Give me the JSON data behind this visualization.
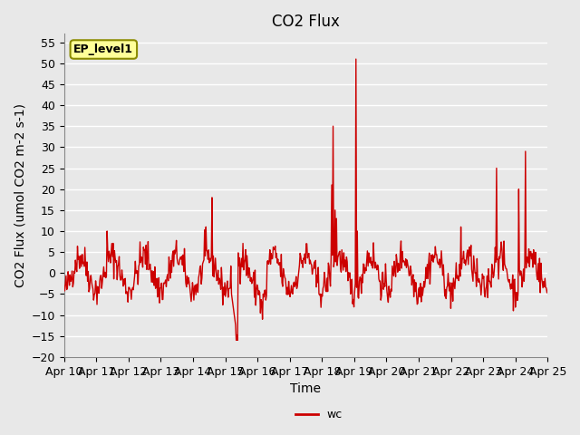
{
  "title": "CO2 Flux",
  "xlabel": "Time",
  "ylabel": "CO2 Flux (umol CO2 m-2 s-1)",
  "ylim": [
    -20,
    57
  ],
  "yticks": [
    -20,
    -15,
    -10,
    -5,
    0,
    5,
    10,
    15,
    20,
    25,
    30,
    35,
    40,
    45,
    50,
    55
  ],
  "x_labels": [
    "Apr 10",
    "Apr 11",
    "Apr 12",
    "Apr 13",
    "Apr 14",
    "Apr 15",
    "Apr 16",
    "Apr 17",
    "Apr 18",
    "Apr 19",
    "Apr 20",
    "Apr 21",
    "Apr 22",
    "Apr 23",
    "Apr 24",
    "Apr 25"
  ],
  "line_color": "#cc0000",
  "line_width": 1.0,
  "background_color": "#e8e8e8",
  "plot_bg_color": "#e8e8e8",
  "grid_color": "#ffffff",
  "legend_label": "wc",
  "legend_line_color": "#cc0000",
  "ep_label": "EP_level1",
  "ep_box_color": "#ffff99",
  "ep_box_edge": "#8b8b00",
  "title_fontsize": 12,
  "axis_fontsize": 10,
  "tick_fontsize": 9
}
